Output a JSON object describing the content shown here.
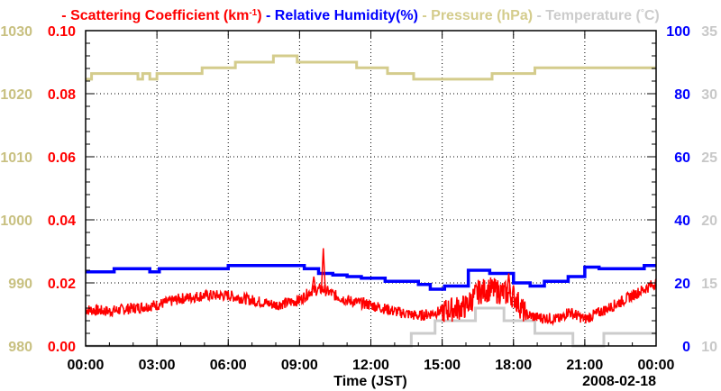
{
  "chart_data": {
    "type": "line",
    "legend": [
      {
        "label": "Scattering Coefficient (km",
        "sup": "-1",
        "close": ")",
        "color": "#ff0000"
      },
      {
        "label": "Relative Humidity(%)",
        "color": "#0000ff"
      },
      {
        "label": "Pressure (hPa)",
        "color": "#d4cc8c"
      },
      {
        "label": "Temperature (",
        "sup": "°",
        "close": "C)",
        "color": "#cccccc"
      }
    ],
    "xlabel": "Time (JST)",
    "date_label": "2008-02-18",
    "x_range_hours": [
      0,
      24
    ],
    "x_ticks": [
      "00:00",
      "03:00",
      "06:00",
      "09:00",
      "12:00",
      "15:00",
      "18:00",
      "21:00",
      "00:00"
    ],
    "axes": {
      "scattering": {
        "range": [
          0,
          0.1
        ],
        "ticks": [
          "0.00",
          "0.02",
          "0.04",
          "0.06",
          "0.08",
          "0.10"
        ],
        "color": "#ff0000"
      },
      "pressure": {
        "range": [
          980,
          1030
        ],
        "ticks": [
          "980",
          "990",
          "1000",
          "1010",
          "1020",
          "1030"
        ],
        "color": "#c8c080"
      },
      "humidity": {
        "range": [
          0,
          100
        ],
        "ticks": [
          "0",
          "20",
          "40",
          "60",
          "80",
          "100"
        ],
        "color": "#0000ff"
      },
      "temperature": {
        "range": [
          10,
          35
        ],
        "ticks": [
          "10",
          "15",
          "20",
          "25",
          "30",
          "35"
        ],
        "color": "#c8c8c8"
      }
    },
    "series": [
      {
        "name": "Scattering Coefficient",
        "axis": "scattering",
        "color": "#ff0000",
        "x": [
          0,
          1,
          2,
          3,
          4,
          5,
          6,
          7,
          8,
          9,
          9.5,
          10,
          10.5,
          11,
          12,
          13,
          14,
          15,
          16,
          16.5,
          17,
          17.5,
          18,
          18.5,
          19,
          20,
          20.3,
          21,
          22,
          23,
          24
        ],
        "y": [
          0.0115,
          0.011,
          0.012,
          0.013,
          0.015,
          0.016,
          0.016,
          0.0145,
          0.013,
          0.0145,
          0.0175,
          0.018,
          0.016,
          0.0145,
          0.013,
          0.011,
          0.0095,
          0.011,
          0.0125,
          0.017,
          0.018,
          0.017,
          0.016,
          0.01,
          0.009,
          0.0085,
          0.011,
          0.0085,
          0.012,
          0.016,
          0.02
        ],
        "spikes": [
          {
            "x": 10.0,
            "y": 0.031
          },
          {
            "x": 9.6,
            "y": 0.022
          },
          {
            "x": 17.8,
            "y": 0.023
          }
        ]
      },
      {
        "name": "Relative Humidity",
        "axis": "humidity",
        "color": "#0000ff",
        "step": true,
        "x": [
          0,
          1.2,
          2.7,
          3.1,
          6,
          9.2,
          9.8,
          10.4,
          11.0,
          11.6,
          12.6,
          14,
          14.5,
          15.1,
          16.1,
          17,
          18,
          18.7,
          19.3,
          20.3,
          21,
          21.6,
          23.5,
          24
        ],
        "y": [
          23.5,
          24.5,
          23.5,
          24.5,
          25.5,
          24.5,
          23,
          22.5,
          22,
          21.5,
          20.5,
          19.5,
          18,
          19,
          24,
          23,
          20,
          19,
          20.5,
          22,
          25,
          24.5,
          25.5,
          25.5
        ]
      },
      {
        "name": "Pressure",
        "axis": "pressure",
        "color": "#d4cc8c",
        "step": true,
        "x": [
          0,
          0.25,
          2.2,
          2.4,
          2.7,
          3,
          4.9,
          6.3,
          7.9,
          8.9,
          11.4,
          12.7,
          13.8,
          17.1,
          18.9,
          24
        ],
        "y": [
          1022.3,
          1023.2,
          1022.3,
          1023.2,
          1022.3,
          1023.2,
          1024.1,
          1025,
          1026,
          1025,
          1024.1,
          1023.2,
          1022.3,
          1023.2,
          1024.1,
          1024.1
        ]
      },
      {
        "name": "Temperature",
        "axis": "temperature",
        "color": "#cccccc",
        "step": true,
        "x": [
          0,
          13.7,
          14.7,
          16.4,
          17.6,
          18.9,
          20.5,
          21.8,
          24
        ],
        "y": [
          10,
          11,
          12,
          13,
          12,
          11,
          10,
          11,
          11
        ]
      }
    ],
    "grid": true
  }
}
